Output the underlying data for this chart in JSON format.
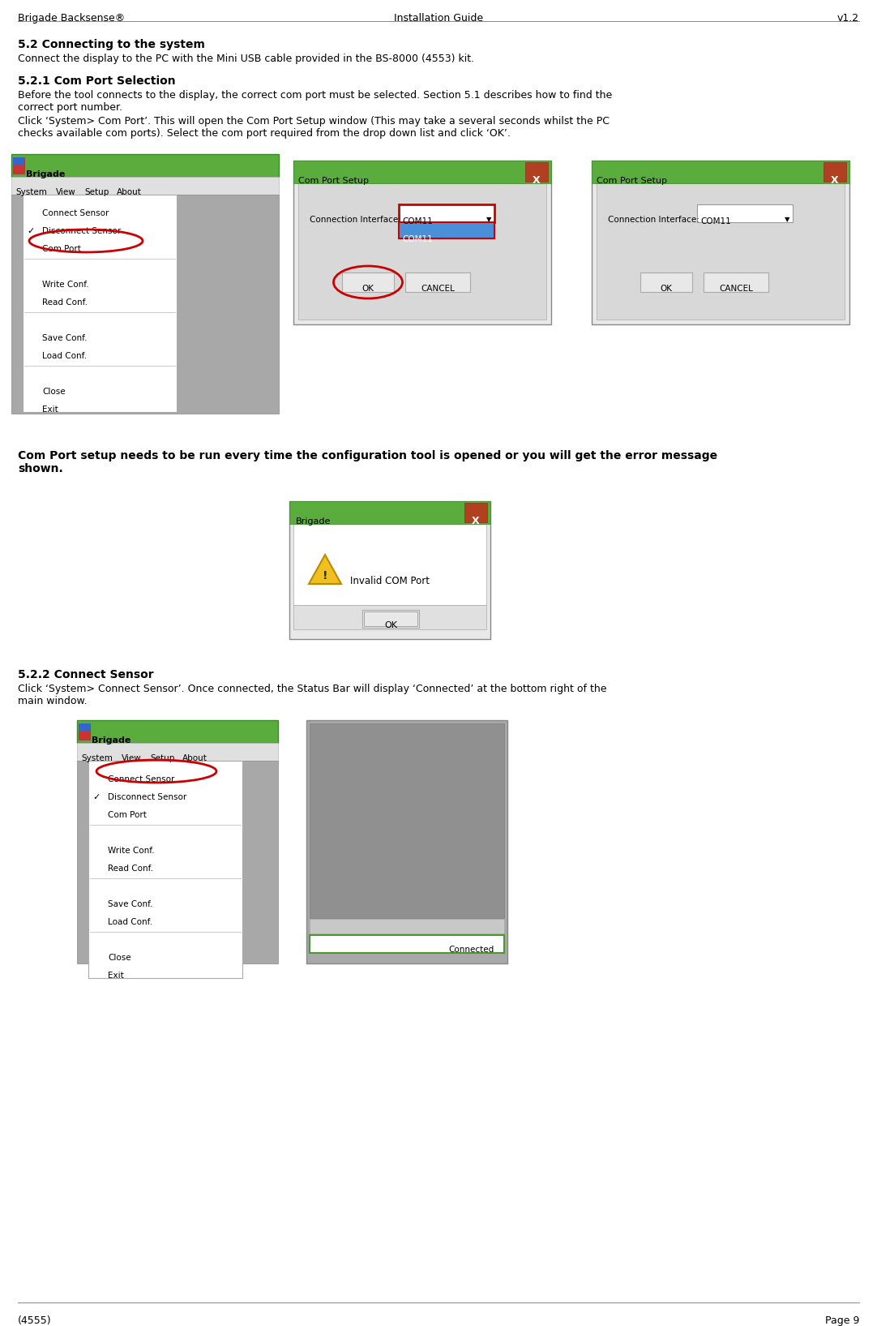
{
  "header_left": "Brigade Backsense®",
  "header_center": "Installation Guide",
  "header_right": "v1.2",
  "footer_left": "(4555)",
  "footer_right": "Page 9",
  "section_52_title": "5.2 Connecting to the system",
  "section_52_body": "Connect the display to the PC with the Mini USB cable provided in the BS-8000 (4553) kit.",
  "section_521_title": "5.2.1 Com Port Selection",
  "section_521_body1": "Before the tool connects to the display, the correct com port must be selected. Section 5.1 describes how to find the\ncorrect port number.",
  "section_521_body2": "Click ‘System> Com Port’. This will open the Com Port Setup window (This may take a several seconds whilst the PC\nchecks available com ports). Select the com port required from the drop down list and click ‘OK’.",
  "section_521_note": "Com Port setup needs to be run every time the configuration tool is opened or you will get the error message\nshown.",
  "section_522_title": "5.2.2 Connect Sensor",
  "section_522_body": "Click ‘System> Connect Sensor’. Once connected, the Status Bar will display ‘Connected’ at the bottom right of the\nmain window.",
  "bg_color": "#ffffff",
  "text_color": "#000000",
  "green_titlebar": "#5aad3c",
  "green_dark": "#3a8a28",
  "green_border": "#4a9a30",
  "red_x_btn": "#b04020",
  "red_circle": "#cc0000",
  "blue_highlight": "#4a90d9",
  "gray_app_bg": "#a8a8a8",
  "gray_menu_bg": "#f0f0f0",
  "gray_dialog_bg": "#d8d8d8",
  "gray_light": "#e8e8e8"
}
